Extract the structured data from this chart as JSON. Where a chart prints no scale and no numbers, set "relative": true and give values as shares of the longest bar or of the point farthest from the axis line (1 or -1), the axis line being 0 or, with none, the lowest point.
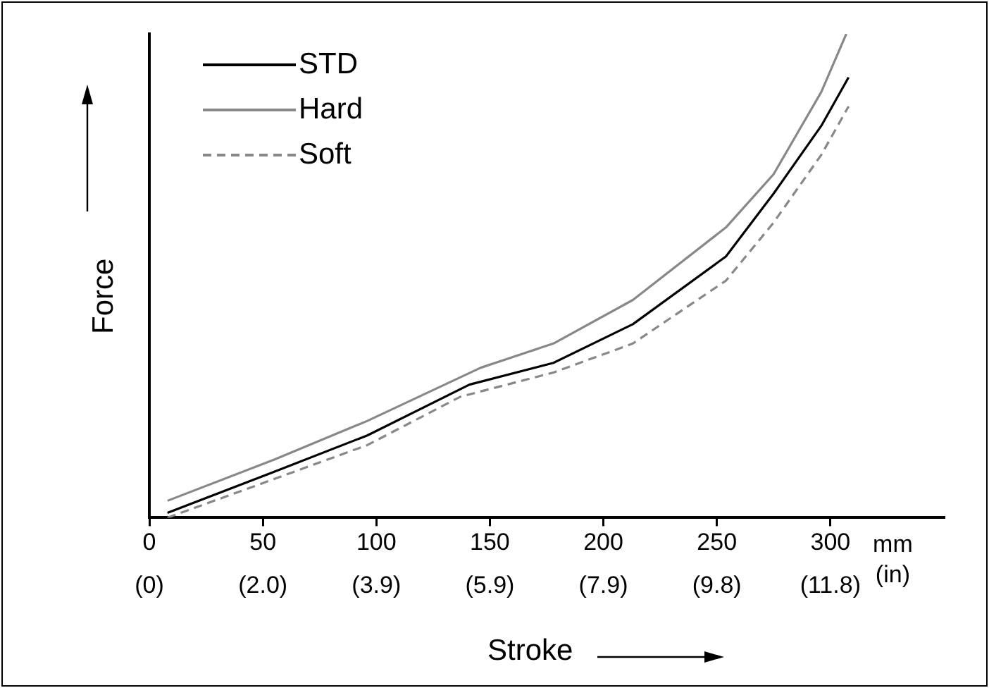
{
  "chart_data": {
    "type": "line",
    "xlabel": "Stroke",
    "ylabel": "Force",
    "relative": true,
    "legend": "top left",
    "grid": false,
    "marker": "none",
    "xlim": [
      0,
      350
    ],
    "xticks": [
      0,
      50,
      100,
      150,
      200,
      250,
      300
    ],
    "x2lim": [
      0,
      13.78
    ],
    "x2ticks": [
      {
        "value": 0,
        "label": "(0)"
      },
      {
        "value": 1.969,
        "label": "(2.0)"
      },
      {
        "value": 3.937,
        "label": "(3.9)"
      },
      {
        "value": 5.906,
        "label": "(5.9)"
      },
      {
        "value": 7.874,
        "label": "(7.9)"
      },
      {
        "value": 9.843,
        "label": "(9.8)"
      },
      {
        "value": 11.811,
        "label": "(11.8)"
      }
    ],
    "annotations": [
      "mm",
      "(in)"
    ],
    "series": [
      {
        "name": "STD",
        "color": "#000000",
        "line_style": "solid",
        "x": [
          8,
          55,
          96,
          141,
          178,
          213,
          254,
          275,
          296,
          308
        ],
        "values": [
          0.01,
          0.095,
          0.17,
          0.275,
          0.32,
          0.4,
          0.54,
          0.67,
          0.81,
          0.91
        ]
      },
      {
        "name": "Hard",
        "color": "#888888",
        "line_style": "solid",
        "x": [
          8,
          55,
          96,
          146,
          178,
          213,
          254,
          275,
          296,
          307
        ],
        "values": [
          0.035,
          0.12,
          0.2,
          0.31,
          0.36,
          0.45,
          0.6,
          0.71,
          0.88,
          1
        ]
      },
      {
        "name": "Soft",
        "color": "#888888",
        "line_style": "dashed",
        "x": [
          8,
          55,
          96,
          137,
          178,
          213,
          254,
          275,
          296,
          308
        ],
        "values": [
          0,
          0.08,
          0.15,
          0.25,
          0.3,
          0.36,
          0.49,
          0.61,
          0.75,
          0.85
        ]
      }
    ]
  }
}
